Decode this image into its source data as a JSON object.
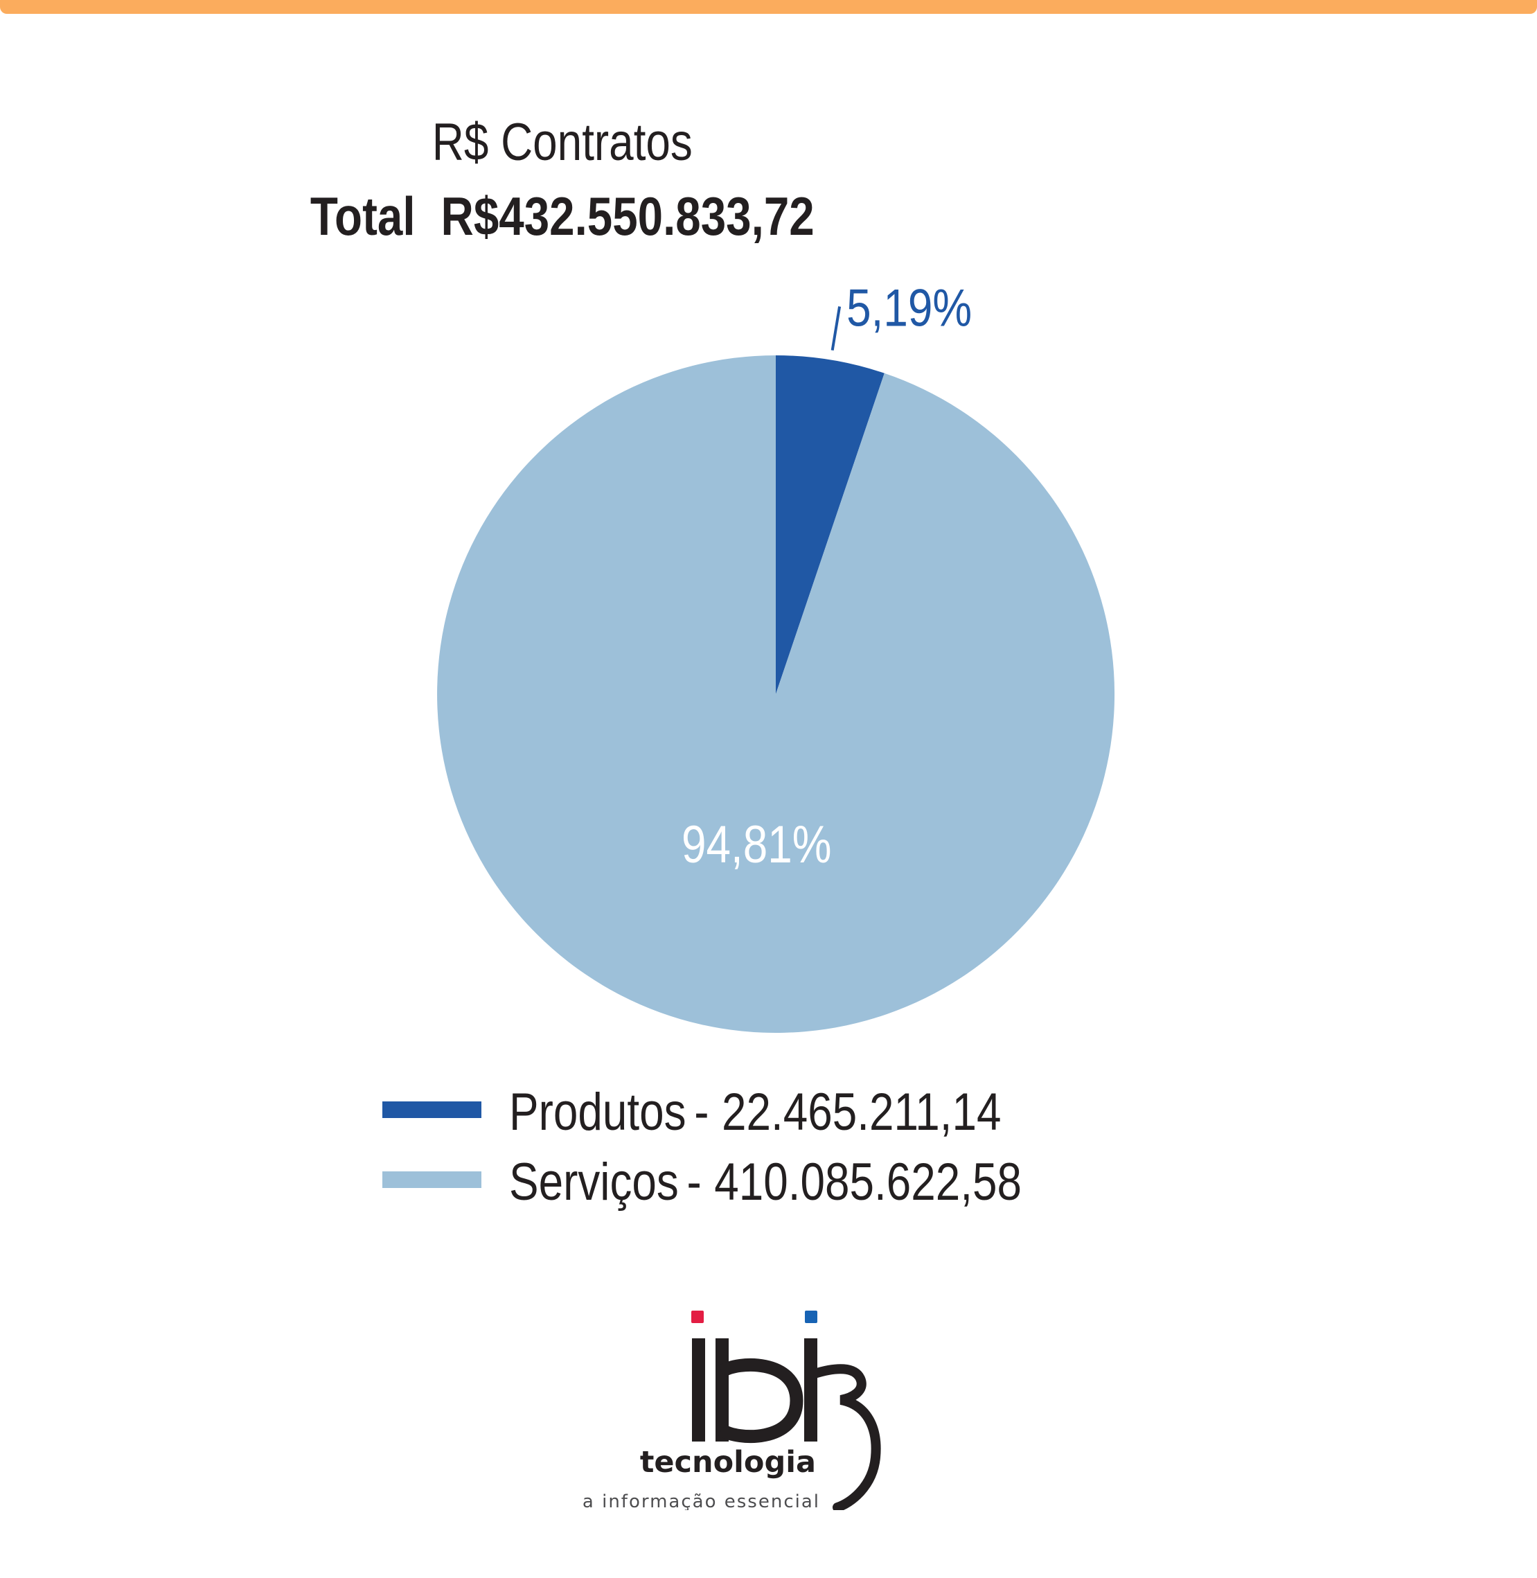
{
  "chart_data": {
    "type": "pie",
    "title": "R$ Contratos",
    "subtitle": {
      "label": "Total",
      "value": "R$432.550.833,72"
    },
    "slices": [
      {
        "name": "Produtos",
        "value": 22465211.14,
        "value_label": "22.465.211,14",
        "percent": 5.19,
        "percent_label": "5,19%",
        "color": "#2058a5"
      },
      {
        "name": "Serviços",
        "value": 410085622.58,
        "value_label": "410.085.622,58",
        "percent": 94.81,
        "percent_label": "94,81%",
        "color": "#9dc0d9"
      }
    ],
    "start_angle": "12 o'clock",
    "direction": "clockwise",
    "legend_position": "bottom",
    "legend_separator": "-"
  },
  "colors": {
    "top_bar": "#fbac5d",
    "text": "#231f20",
    "label_outside": "#2058a5",
    "label_inside": "#ffffff"
  },
  "logo": {
    "wordmark": "ibi",
    "name": "tecnologia",
    "tagline": "a informação essencial",
    "colors": {
      "dot_left": "#e31d43",
      "dot_right": "#1763b4",
      "ink": "#231f20"
    }
  }
}
